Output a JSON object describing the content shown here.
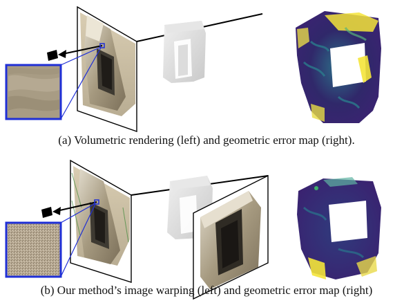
{
  "figure": {
    "panel_a": {
      "caption": "(a) Volumetric rendering (left) and geometric error map (right)."
    },
    "panel_b": {
      "caption": "(b) Our method’s image warping (left) and geometric error map (right)"
    },
    "colors": {
      "patch_border": "#1f2fd6",
      "ray_line": "#000000",
      "error_low": "#3b2372",
      "error_mid": "#2a7c8c",
      "error_high": "#f4e43a",
      "stone": "#a89c84"
    },
    "icons": [
      "camera-icon"
    ]
  }
}
